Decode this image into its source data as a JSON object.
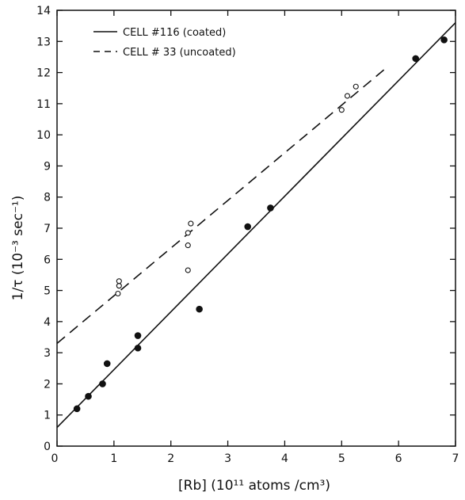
{
  "chart_data": {
    "type": "scatter",
    "title": "",
    "xlabel": "[Rb] (10¹¹ atoms /cm³)",
    "ylabel": "1/τ (10⁻³ sec⁻¹)",
    "xlim": [
      0,
      7
    ],
    "ylim": [
      0,
      14
    ],
    "x_ticks": [
      "0",
      "1",
      "2",
      "3",
      "4",
      "5",
      "6",
      "7"
    ],
    "y_ticks": [
      "0",
      "1",
      "2",
      "3",
      "4",
      "5",
      "6",
      "7",
      "8",
      "9",
      "10",
      "11",
      "12",
      "13",
      "14"
    ],
    "grid": false,
    "legend_position": "top-left",
    "series": [
      {
        "name": "CELL #116 (coated)",
        "marker": "filled-circle",
        "line_style": "solid",
        "points": [
          [
            0.35,
            1.2
          ],
          [
            0.55,
            1.6
          ],
          [
            0.8,
            2.0
          ],
          [
            0.88,
            2.65
          ],
          [
            1.42,
            3.15
          ],
          [
            1.42,
            3.55
          ],
          [
            2.5,
            4.4
          ],
          [
            3.35,
            7.05
          ],
          [
            3.75,
            7.65
          ],
          [
            6.3,
            12.45
          ],
          [
            6.8,
            13.05
          ]
        ],
        "fit_line": [
          [
            0,
            0.6
          ],
          [
            7,
            13.6
          ]
        ]
      },
      {
        "name": "CELL # 33 (uncoated)",
        "marker": "open-circle",
        "line_style": "dashed",
        "points": [
          [
            1.07,
            4.9
          ],
          [
            1.09,
            5.15
          ],
          [
            1.09,
            5.3
          ],
          [
            2.3,
            5.65
          ],
          [
            2.3,
            6.45
          ],
          [
            2.3,
            6.85
          ],
          [
            2.35,
            7.15
          ],
          [
            5.0,
            10.8
          ],
          [
            5.1,
            11.25
          ],
          [
            5.25,
            11.55
          ]
        ],
        "fit_line": [
          [
            0,
            3.3
          ],
          [
            5.75,
            12.1
          ]
        ]
      }
    ]
  }
}
